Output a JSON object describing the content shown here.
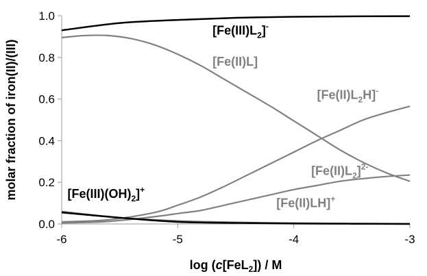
{
  "chart_data": {
    "type": "line",
    "xlabel": "log (c[FeL2]) / M",
    "ylabel": "molar fraction of iron(II)/(III)",
    "xlim": [
      -6,
      -3
    ],
    "ylim": [
      0,
      1.0
    ],
    "x_ticks": [
      "-6",
      "-5",
      "-4",
      "-3"
    ],
    "y_ticks": [
      "0.0",
      "0.2",
      "0.4",
      "0.6",
      "0.8",
      "1.0"
    ],
    "grid": false,
    "legend": "none (series labelled inline)",
    "series": [
      {
        "name": "[Fe(III)L2]-",
        "color": "#000000",
        "x": [
          -6,
          -5.5,
          -5,
          -4.5,
          -4,
          -3.5,
          -3
        ],
        "values": [
          0.93,
          0.965,
          0.98,
          0.99,
          0.995,
          0.997,
          0.998
        ]
      },
      {
        "name": "[Fe(II)L]",
        "color": "#808080",
        "x": [
          -6,
          -5.8,
          -5.6,
          -5.4,
          -5.2,
          -5.0,
          -4.8,
          -4.6,
          -4.4,
          -4.2,
          -4.0,
          -3.8,
          -3.6,
          -3.4,
          -3.2,
          -3.0
        ],
        "values": [
          0.895,
          0.905,
          0.905,
          0.89,
          0.86,
          0.815,
          0.76,
          0.695,
          0.63,
          0.565,
          0.495,
          0.425,
          0.355,
          0.295,
          0.245,
          0.205
        ]
      },
      {
        "name": "[Fe(II)L2H]-",
        "color": "#808080",
        "x": [
          -6,
          -5.6,
          -5.2,
          -5.0,
          -4.8,
          -4.6,
          -4.4,
          -4.2,
          -4.0,
          -3.8,
          -3.6,
          -3.4,
          -3.2,
          -3.0
        ],
        "values": [
          0.01,
          0.02,
          0.055,
          0.09,
          0.13,
          0.18,
          0.235,
          0.29,
          0.345,
          0.4,
          0.45,
          0.5,
          0.535,
          0.565
        ]
      },
      {
        "name": "[Fe(II)L2]2-",
        "color": "#808080",
        "x": [
          -6,
          -5.6,
          -5.2,
          -5.0,
          -4.8,
          -4.6,
          -4.4,
          -4.2,
          -4.0,
          -3.8,
          -3.6,
          -3.4,
          -3.2,
          -3.0
        ],
        "values": [
          0.005,
          0.012,
          0.035,
          0.05,
          0.065,
          0.09,
          0.115,
          0.14,
          0.165,
          0.185,
          0.205,
          0.218,
          0.228,
          0.235
        ]
      },
      {
        "name": "[Fe(II)LH]+",
        "color": "#808080",
        "x": [
          -6,
          -5.5,
          -5,
          -4.5,
          -4,
          -3.5,
          -3
        ],
        "values": [
          0.06,
          0.03,
          0.015,
          0.008,
          0.004,
          0.002,
          0.001
        ]
      },
      {
        "name": "[Fe(III)(OH)2]+",
        "color": "#000000",
        "x": [
          -6,
          -5.5,
          -5,
          -4.5,
          -4,
          -3.5,
          -3
        ],
        "values": [
          0.055,
          0.03,
          0.01,
          0.005,
          0.002,
          0.001,
          0.0
        ]
      }
    ],
    "annotations": [
      {
        "text": "[Fe(III)L2]-",
        "x": -4.7,
        "y": 0.91,
        "color": "#000000"
      },
      {
        "text": "[Fe(II)L]",
        "x": -4.7,
        "y": 0.76,
        "color": "#808080"
      },
      {
        "text": "[Fe(II)L2H]-",
        "x": -3.8,
        "y": 0.6,
        "color": "#808080"
      },
      {
        "text": "[Fe(II)L2]2-",
        "x": -3.85,
        "y": 0.235,
        "color": "#808080"
      },
      {
        "text": "[Fe(II)LH]+",
        "x": -4.15,
        "y": 0.08,
        "color": "#808080"
      },
      {
        "text": "[Fe(III)(OH)2]+",
        "x": -5.95,
        "y": 0.125,
        "color": "#000000"
      }
    ]
  }
}
